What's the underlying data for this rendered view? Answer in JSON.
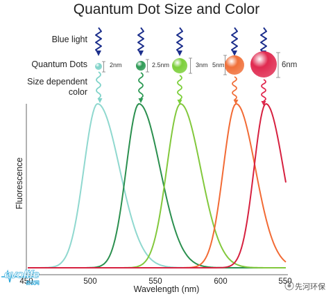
{
  "title": "Quantum Dot Size and Color",
  "rows": {
    "blue_light": "Blue light",
    "quantum_dots": "Quantum Dots",
    "size_dependent_line1": "Size dependent",
    "size_dependent_line2": "color"
  },
  "dots": [
    {
      "size_label": "2nm",
      "color": "#7fd3c9"
    },
    {
      "size_label": "2.5nm",
      "color": "#2e9a55"
    },
    {
      "size_label": "3nm",
      "color": "#7ccf3a"
    },
    {
      "size_label": "5nm",
      "color": "#f0703a"
    },
    {
      "size_label": "6nm",
      "color": "#e02a50"
    }
  ],
  "colors": {
    "blue_light_wave": "#1c2f8c",
    "axis": "#666666"
  },
  "chart_data": {
    "type": "line",
    "xlabel": "Wavelength (nm)",
    "ylabel": "Fluorescence",
    "xlim": [
      450,
      550
    ],
    "x_ticks": [
      "450",
      "500",
      "550",
      "600",
      "550"
    ],
    "series": [
      {
        "color": "#8fd8cf",
        "peak": 505,
        "width_left": 15,
        "width_right": 24
      },
      {
        "color": "#2a8f4e",
        "peak": 537,
        "width_left": 14,
        "width_right": 23
      },
      {
        "color": "#82c83c",
        "peak": 569,
        "width_left": 15,
        "width_right": 22
      },
      {
        "color": "#f26a34",
        "peak": 612,
        "width_left": 14,
        "width_right": 21
      },
      {
        "color": "#d6203f",
        "peak": 635,
        "width_left": 13,
        "width_right": 19
      }
    ]
  },
  "watermarks": {
    "left": "evolife",
    "left_sub": "会议网",
    "right": "先河环保"
  }
}
